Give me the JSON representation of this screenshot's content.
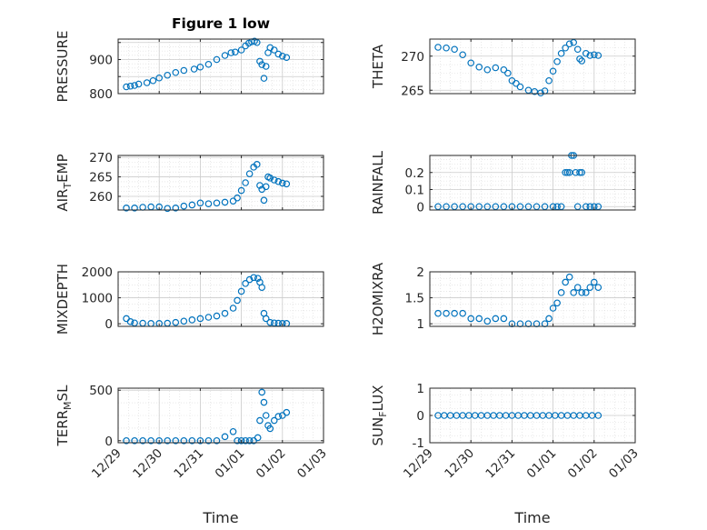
{
  "figure": {
    "title": "Figure 1 low",
    "x_axis_label": "Time",
    "x_tick_labels": [
      "12/29",
      "12/30",
      "12/31",
      "01/01",
      "01/02",
      "01/03"
    ],
    "marker_color": "#0072BD"
  },
  "chart_data": [
    {
      "type": "scatter",
      "title": "Figure 1 low",
      "ylabel": "PRESSURE",
      "ylim": [
        800,
        960
      ],
      "yticks": [
        800,
        850,
        900,
        950
      ],
      "ytick_labels": [
        "800",
        "",
        "900",
        ""
      ],
      "xlim": [
        0,
        5
      ],
      "grid": true,
      "x": [
        0.2,
        0.3,
        0.4,
        0.5,
        0.7,
        0.85,
        1.0,
        1.2,
        1.4,
        1.6,
        1.85,
        2.0,
        2.2,
        2.4,
        2.6,
        2.75,
        2.85,
        3.0,
        3.1,
        3.18,
        3.25,
        3.32,
        3.38,
        3.45,
        3.5,
        3.55,
        3.6,
        3.65,
        3.7,
        3.8,
        3.9,
        4.0,
        4.1
      ],
      "y": [
        820,
        822,
        824,
        828,
        832,
        838,
        846,
        854,
        862,
        868,
        872,
        878,
        886,
        900,
        912,
        920,
        922,
        928,
        940,
        948,
        952,
        954,
        950,
        895,
        885,
        845,
        880,
        920,
        935,
        928,
        916,
        910,
        906
      ]
    },
    {
      "type": "scatter",
      "title": "",
      "ylabel": "THETA",
      "ylim": [
        264.5,
        272.5
      ],
      "yticks": [
        265,
        270
      ],
      "ytick_labels": [
        "265",
        "270"
      ],
      "xlim": [
        0,
        5
      ],
      "grid": true,
      "x": [
        0.2,
        0.4,
        0.6,
        0.8,
        1.0,
        1.2,
        1.4,
        1.6,
        1.8,
        1.9,
        2.0,
        2.1,
        2.2,
        2.4,
        2.55,
        2.7,
        2.8,
        2.9,
        3.0,
        3.1,
        3.2,
        3.3,
        3.4,
        3.5,
        3.6,
        3.65,
        3.7,
        3.8,
        3.9,
        4.0,
        4.1
      ],
      "y": [
        271.3,
        271.2,
        271.0,
        270.2,
        269.0,
        268.4,
        268.0,
        268.3,
        268.0,
        267.5,
        266.4,
        266.0,
        265.5,
        265.0,
        264.8,
        264.6,
        264.9,
        266.4,
        267.8,
        269.2,
        270.4,
        271.2,
        271.8,
        272.0,
        271.0,
        269.6,
        269.3,
        270.4,
        270.1,
        270.2,
        270.1
      ]
    },
    {
      "type": "scatter",
      "title": "",
      "ylabel": "AIR_TEMP",
      "ylim": [
        256.5,
        270.5
      ],
      "yticks": [
        260,
        265,
        270
      ],
      "ytick_labels": [
        "260",
        "265",
        "270"
      ],
      "xlim": [
        0,
        5
      ],
      "grid": true,
      "x": [
        0.2,
        0.4,
        0.6,
        0.8,
        1.0,
        1.2,
        1.4,
        1.6,
        1.8,
        2.0,
        2.2,
        2.4,
        2.6,
        2.8,
        2.9,
        3.0,
        3.1,
        3.2,
        3.3,
        3.38,
        3.45,
        3.5,
        3.55,
        3.6,
        3.65,
        3.7,
        3.8,
        3.9,
        4.0,
        4.1
      ],
      "y": [
        257.0,
        257.0,
        257.2,
        257.3,
        257.3,
        256.9,
        257.0,
        257.5,
        257.8,
        258.3,
        258.1,
        258.3,
        258.5,
        258.8,
        259.6,
        261.5,
        263.5,
        265.8,
        267.5,
        268.2,
        262.8,
        261.8,
        259.0,
        262.5,
        265.0,
        264.7,
        264.2,
        263.8,
        263.4,
        263.2
      ]
    },
    {
      "type": "scatter",
      "title": "",
      "ylabel": "RAINFALL",
      "ylim": [
        -0.02,
        0.3
      ],
      "yticks": [
        0,
        0.1,
        0.2
      ],
      "ytick_labels": [
        "0",
        "0.1",
        "0.2"
      ],
      "xlim": [
        0,
        5
      ],
      "grid": true,
      "x": [
        0.2,
        0.4,
        0.6,
        0.8,
        1.0,
        1.2,
        1.4,
        1.6,
        1.8,
        2.0,
        2.2,
        2.4,
        2.6,
        2.8,
        3.0,
        3.1,
        3.2,
        3.3,
        3.35,
        3.4,
        3.45,
        3.5,
        3.55,
        3.6,
        3.65,
        3.7,
        3.8,
        3.9,
        4.0,
        4.1
      ],
      "y": [
        0,
        0,
        0,
        0,
        0,
        0,
        0,
        0,
        0,
        0,
        0,
        0,
        0,
        0,
        0,
        0,
        0,
        0.2,
        0.2,
        0.2,
        0.3,
        0.3,
        0.2,
        0,
        0.2,
        0.2,
        0,
        0,
        0,
        0
      ]
    },
    {
      "type": "scatter",
      "title": "",
      "ylabel": "MIXDEPTH",
      "ylim": [
        -100,
        2000
      ],
      "yticks": [
        0,
        1000,
        2000
      ],
      "ytick_labels": [
        "0",
        "1000",
        "2000"
      ],
      "xlim": [
        0,
        5
      ],
      "grid": true,
      "x": [
        0.2,
        0.3,
        0.4,
        0.6,
        0.8,
        1.0,
        1.2,
        1.4,
        1.6,
        1.8,
        2.0,
        2.2,
        2.4,
        2.6,
        2.8,
        2.9,
        3.0,
        3.1,
        3.2,
        3.3,
        3.4,
        3.45,
        3.5,
        3.55,
        3.6,
        3.7,
        3.8,
        3.9,
        4.0,
        4.1
      ],
      "y": [
        200,
        80,
        30,
        20,
        10,
        10,
        20,
        50,
        100,
        150,
        200,
        250,
        300,
        400,
        600,
        900,
        1250,
        1550,
        1700,
        1780,
        1750,
        1600,
        1400,
        400,
        200,
        50,
        30,
        20,
        10,
        10
      ]
    },
    {
      "type": "scatter",
      "title": "",
      "ylabel": "H2OMIXRA",
      "ylim": [
        0.95,
        2
      ],
      "yticks": [
        1,
        1.5,
        2
      ],
      "ytick_labels": [
        "1",
        "1.5",
        "2"
      ],
      "xlim": [
        0,
        5
      ],
      "grid": true,
      "x": [
        0.2,
        0.4,
        0.6,
        0.8,
        1.0,
        1.2,
        1.4,
        1.6,
        1.8,
        2.0,
        2.2,
        2.4,
        2.6,
        2.8,
        2.9,
        3.0,
        3.1,
        3.2,
        3.3,
        3.4,
        3.5,
        3.6,
        3.7,
        3.8,
        3.9,
        4.0,
        4.1
      ],
      "y": [
        1.2,
        1.2,
        1.2,
        1.2,
        1.1,
        1.1,
        1.05,
        1.1,
        1.1,
        1.0,
        1.0,
        1.0,
        1.0,
        1.0,
        1.1,
        1.3,
        1.4,
        1.6,
        1.8,
        1.9,
        1.6,
        1.7,
        1.6,
        1.6,
        1.7,
        1.8,
        1.7
      ]
    },
    {
      "type": "scatter",
      "title": "",
      "ylabel": "TERR_MSL",
      "ylim": [
        -20,
        520
      ],
      "yticks": [
        0,
        500
      ],
      "ytick_labels": [
        "0",
        "500"
      ],
      "xlim": [
        0,
        5
      ],
      "grid": true,
      "x": [
        0.2,
        0.4,
        0.6,
        0.8,
        1.0,
        1.2,
        1.4,
        1.6,
        1.8,
        2.0,
        2.2,
        2.4,
        2.6,
        2.8,
        2.9,
        3.0,
        3.1,
        3.2,
        3.3,
        3.4,
        3.45,
        3.5,
        3.55,
        3.6,
        3.65,
        3.7,
        3.8,
        3.9,
        4.0,
        4.1
      ],
      "y": [
        0,
        0,
        0,
        0,
        0,
        0,
        0,
        0,
        0,
        0,
        0,
        0,
        40,
        90,
        0,
        0,
        0,
        0,
        0,
        30,
        200,
        480,
        380,
        250,
        150,
        120,
        200,
        240,
        250,
        280
      ]
    },
    {
      "type": "scatter",
      "title": "",
      "ylabel": "SUN_FLUX",
      "ylim": [
        -1,
        1
      ],
      "yticks": [
        -1,
        0,
        1
      ],
      "ytick_labels": [
        "-1",
        "0",
        "1"
      ],
      "xlim": [
        0,
        5
      ],
      "grid": true,
      "x": [
        0.2,
        0.35,
        0.5,
        0.65,
        0.8,
        0.95,
        1.1,
        1.25,
        1.4,
        1.55,
        1.7,
        1.85,
        2.0,
        2.15,
        2.3,
        2.45,
        2.6,
        2.75,
        2.9,
        3.05,
        3.2,
        3.35,
        3.5,
        3.65,
        3.8,
        3.95,
        4.1
      ],
      "y": [
        0,
        0,
        0,
        0,
        0,
        0,
        0,
        0,
        0,
        0,
        0,
        0,
        0,
        0,
        0,
        0,
        0,
        0,
        0,
        0,
        0,
        0,
        0,
        0,
        0,
        0,
        0
      ]
    }
  ]
}
